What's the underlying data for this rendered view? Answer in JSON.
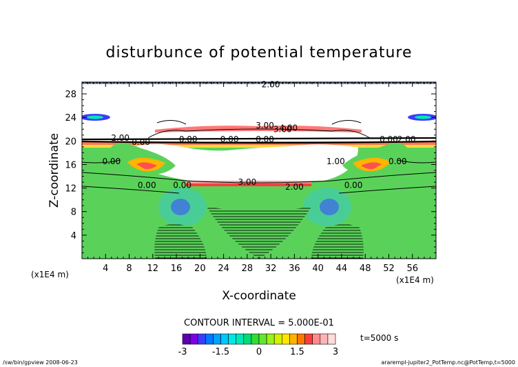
{
  "chart_data": {
    "type": "heatmap",
    "title": "disturbunce of potential temperature",
    "xlabel": "X-coordinate",
    "ylabel": "Z-coordinate",
    "x_unit": "(x1E4 m)",
    "y_unit": "(x1E4 m)",
    "xlim": [
      0,
      60
    ],
    "ylim": [
      0,
      30
    ],
    "x_ticks": [
      4,
      8,
      12,
      16,
      20,
      24,
      28,
      32,
      36,
      40,
      44,
      48,
      52,
      56
    ],
    "y_ticks": [
      4,
      8,
      12,
      16,
      20,
      24,
      28
    ],
    "contour_interval_text": "CONTOUR INTERVAL = 5.000E-01",
    "time_text": "t=5000 s",
    "colorbar": {
      "min": -3,
      "max": 3,
      "tick_labels": [
        "-3",
        "-1.5",
        "0",
        "1.5",
        "3"
      ],
      "tick_values": [
        -3,
        -1.5,
        0,
        1.5,
        3
      ],
      "colors": [
        "#5a00b4",
        "#7d00e6",
        "#3c3cff",
        "#0078ff",
        "#00a0ff",
        "#00c8ff",
        "#00e6e6",
        "#00e6b4",
        "#00dc78",
        "#32dc32",
        "#64e632",
        "#9bf01e",
        "#d2f000",
        "#ffe600",
        "#ffb400",
        "#ff7800",
        "#ff3c3c",
        "#ff8c8c",
        "#ffb4b4",
        "#ffdcdc"
      ]
    },
    "contour_labels": [
      {
        "text": "2.00",
        "x": 32,
        "z": 29.6
      },
      {
        "text": "3.00",
        "x": 31,
        "z": 22.6
      },
      {
        "text": "3.00",
        "x": 34,
        "z": 22.0
      },
      {
        "text": "4.00",
        "x": 35,
        "z": 22.2
      },
      {
        "text": "2.00",
        "x": 6.5,
        "z": 20.5
      },
      {
        "text": "0.00",
        "x": 10,
        "z": 19.8
      },
      {
        "text": "0.00",
        "x": 18,
        "z": 20.3
      },
      {
        "text": "0.00",
        "x": 25,
        "z": 20.3
      },
      {
        "text": "0.00",
        "x": 31,
        "z": 20.3
      },
      {
        "text": "0.00",
        "x": 52,
        "z": 20.3
      },
      {
        "text": "2.00",
        "x": 55,
        "z": 20.3
      },
      {
        "text": "0.00",
        "x": 5,
        "z": 16.5
      },
      {
        "text": "0.00",
        "x": 53.5,
        "z": 16.5
      },
      {
        "text": "1.00",
        "x": 43,
        "z": 16.5
      },
      {
        "text": "0.00",
        "x": 11,
        "z": 12.5
      },
      {
        "text": "0.00",
        "x": 17,
        "z": 12.5
      },
      {
        "text": "3.00",
        "x": 28,
        "z": 13.0
      },
      {
        "text": "2.00",
        "x": 36,
        "z": 12.2
      },
      {
        "text": "0.00",
        "x": 46,
        "z": 12.5
      }
    ]
  },
  "footer": {
    "left": "/sw/bin/gpview   2008-06-23",
    "right": "ararempl-jupiter2_PotTemp.nc@PotTemp,t=5000"
  }
}
